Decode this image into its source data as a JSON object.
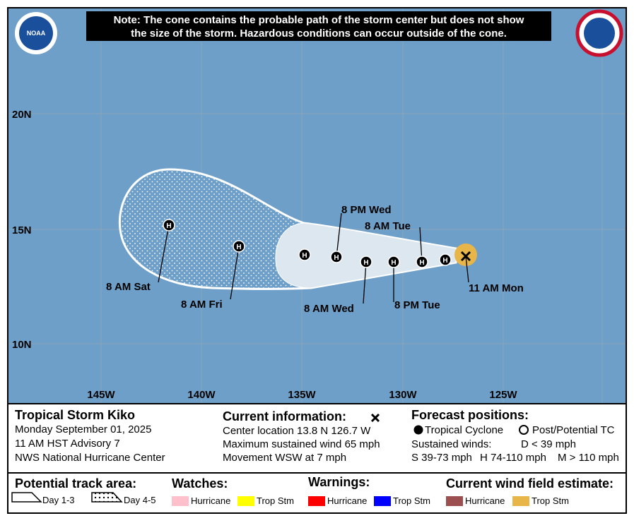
{
  "note": [
    "Note: The cone contains the probable path of the storm center but does not show",
    "the size of the storm. Hazardous conditions can occur outside of the cone."
  ],
  "logo": "NOAA",
  "map": {
    "lat_labels": [
      "20N",
      "15N",
      "10N"
    ],
    "lon_labels": [
      "145W",
      "140W",
      "135W",
      "130W",
      "125W"
    ],
    "point_labels": [
      "8 AM Sat",
      "8 AM Fri",
      "8 PM Wed",
      "8 AM Wed",
      "8 AM Tue",
      "8 PM Tue",
      "11 AM Mon"
    ],
    "markers": [
      "H",
      "H",
      "H",
      "H",
      "H",
      "H",
      "H",
      "H"
    ]
  },
  "info": {
    "storm": "Tropical Storm Kiko",
    "date": "Monday September 01, 2025",
    "advisory": "11 AM HST Advisory 7",
    "center": "NWS National Hurricane Center",
    "current_title": "Current information:",
    "current_lines": [
      "Center location 13.8 N 126.7 W",
      "Maximum sustained wind 65 mph",
      "Movement WSW at 7 mph"
    ],
    "forecast_title": "Forecast positions:",
    "tc": "Tropical Cyclone",
    "post": "Post/Potential TC",
    "sustained": "Sustained winds:",
    "d": "D < 39 mph",
    "s": "S 39-73 mph",
    "h": "H 74-110 mph",
    "m": "M > 110 mph"
  },
  "legend": {
    "track": "Potential track area:",
    "day13": "Day 1-3",
    "day45": "Day 4-5",
    "watches": "Watches:",
    "watch_items": [
      "Hurricane",
      "Trop Stm"
    ],
    "warnings": "Warnings:",
    "warning_items": [
      "Hurricane",
      "Trop Stm"
    ],
    "wind": "Current wind field estimate:",
    "wind_items": [
      "Hurricane",
      "Trop Stm"
    ]
  }
}
